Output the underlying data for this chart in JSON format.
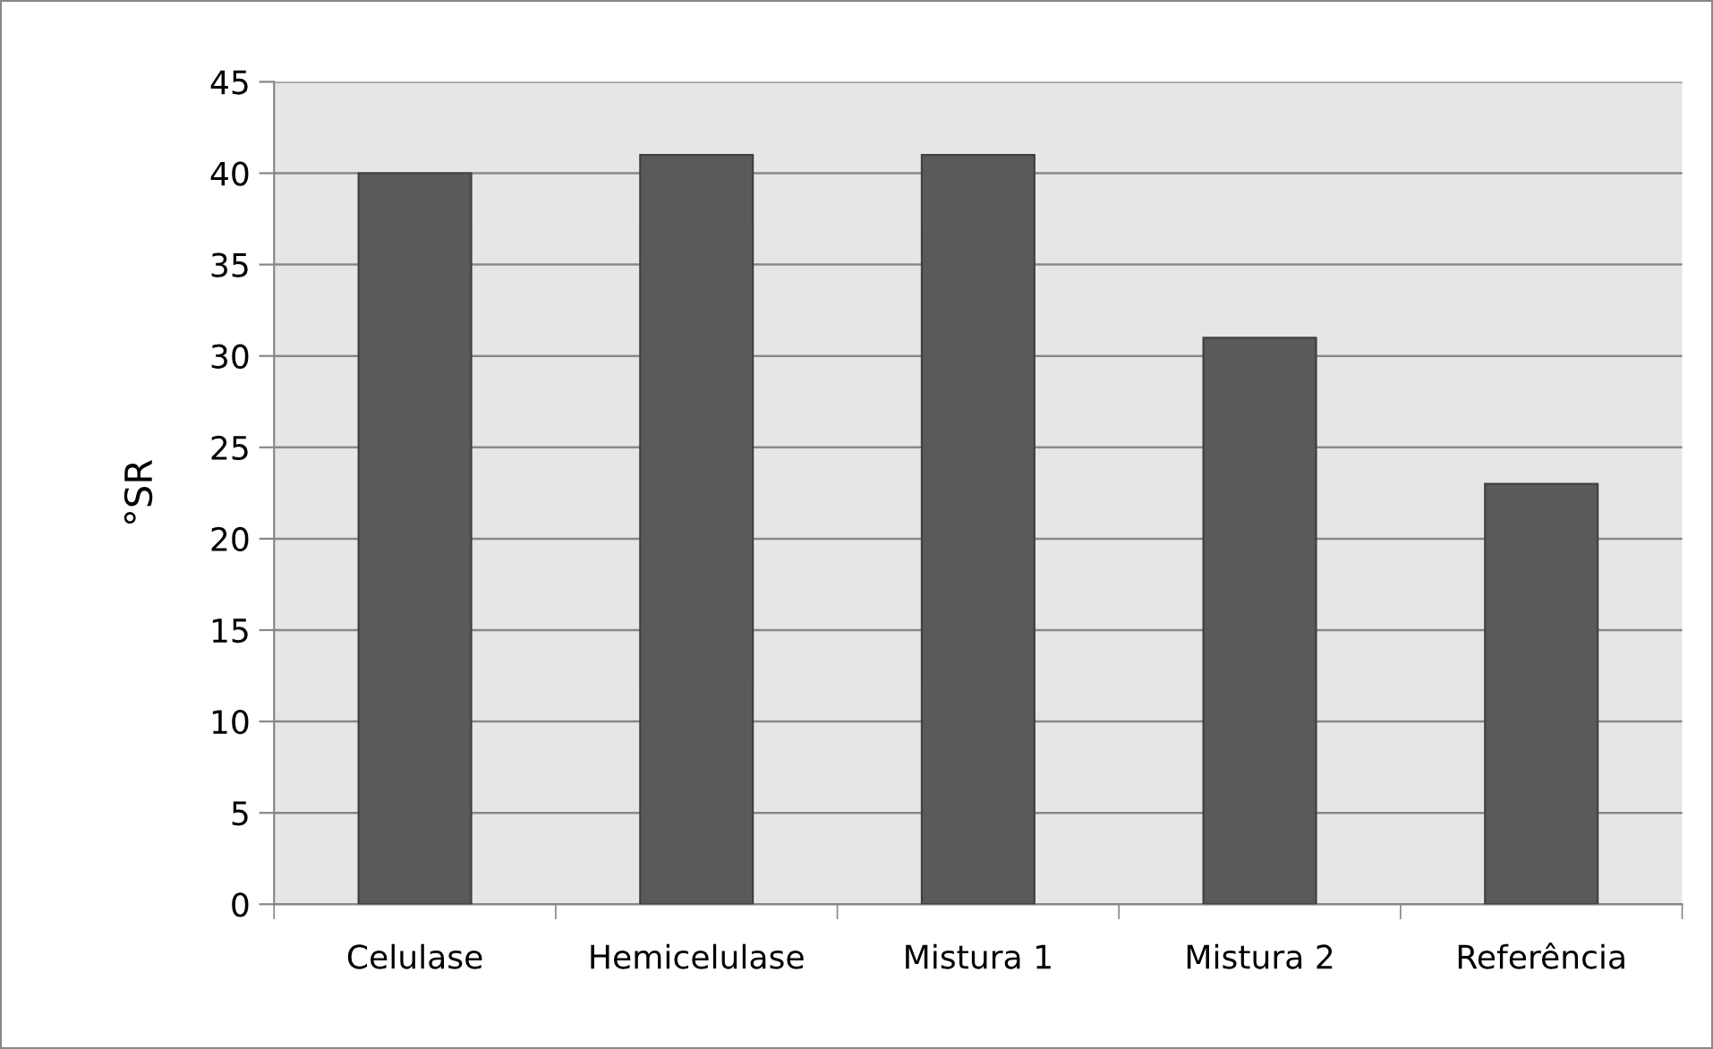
{
  "chart_data": {
    "type": "bar",
    "ylabel": "°SR",
    "categories": [
      "Celulase",
      "Hemicelulase",
      "Mistura 1",
      "Mistura 2",
      "Referência"
    ],
    "values": [
      40,
      41,
      41,
      31,
      23
    ],
    "color": "#5a5a5a",
    "ylim": [
      0,
      45
    ],
    "yticks": [
      0,
      5,
      10,
      15,
      20,
      25,
      30,
      35,
      40,
      45
    ],
    "grid": "y",
    "legend": false
  }
}
